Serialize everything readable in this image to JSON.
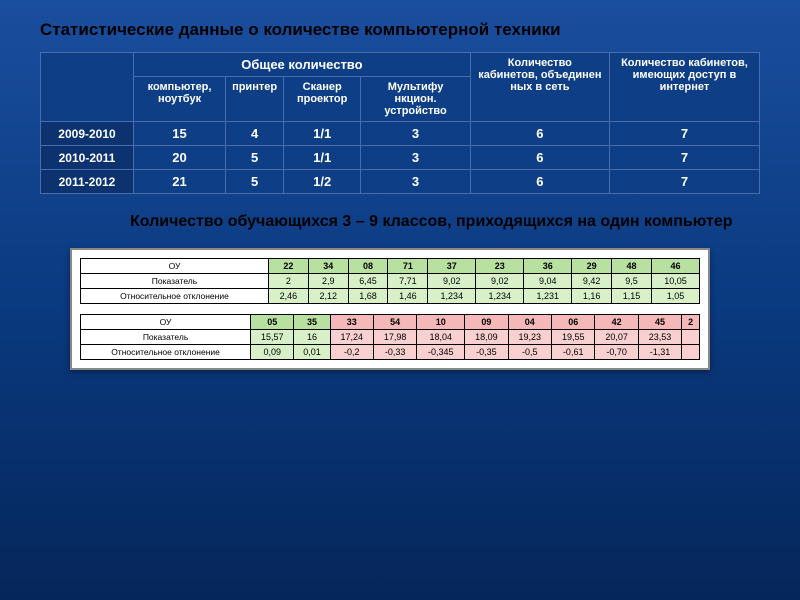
{
  "title": "Статистические данные о количестве компьютерной техники",
  "top_table": {
    "header_group": "Общее количество",
    "col_headers": [
      "компьютер, ноутбук",
      "принтер",
      "Сканер проектор",
      "Мультифу нкцион. устройство"
    ],
    "side_headers": [
      "Количество кабинетов, объединен ных в сеть",
      "Количество кабинетов, имеющих доступ в интернет"
    ],
    "rows": [
      {
        "year": "2009-2010",
        "vals": [
          "15",
          "4",
          "1/1",
          "3",
          "6",
          "7"
        ]
      },
      {
        "year": "2010-2011",
        "vals": [
          "20",
          "5",
          "1/1",
          "3",
          "6",
          "7"
        ]
      },
      {
        "year": "2011-2012",
        "vals": [
          "21",
          "5",
          "1/2",
          "3",
          "6",
          "7"
        ]
      }
    ]
  },
  "subtitle": "Количество обучающихся 3 – 9 классов, приходящихся на один компьютер",
  "bottom1": {
    "row_labels": [
      "ОУ",
      "Показатель",
      "Относительное отклонение"
    ],
    "headers": [
      "22",
      "34",
      "08",
      "71",
      "37",
      "23",
      "36",
      "29",
      "48",
      "46"
    ],
    "r1": [
      "2",
      "2,9",
      "6,45",
      "7,71",
      "9,02",
      "9,02",
      "9,04",
      "9,42",
      "9,5",
      "10,05"
    ],
    "r2": [
      "2,46",
      "2,12",
      "1,68",
      "1,46",
      "1,234",
      "1,234",
      "1,231",
      "1,16",
      "1,15",
      "1,05"
    ],
    "header_color": "#b8e0a0",
    "cell_color": "#d8f0c8"
  },
  "bottom2": {
    "row_labels": [
      "ОУ",
      "Показатель",
      "Относительное отклонение"
    ],
    "headers": [
      "05",
      "35",
      "33",
      "54",
      "10",
      "09",
      "04",
      "06",
      "42",
      "45"
    ],
    "r1": [
      "15,57",
      "16",
      "17,24",
      "17,98",
      "18,04",
      "18,09",
      "19,23",
      "19,55",
      "20,07",
      "23,53"
    ],
    "r2": [
      "0,09",
      "0,01",
      "-0,2",
      "-0,33",
      "-0,345",
      "-0,35",
      "-0,5",
      "-0,61",
      "-0,70",
      "-1,31"
    ],
    "green_cols": 2
  },
  "colors": {
    "bg_top": "#1a4e9e",
    "bg_bottom": "#05265a",
    "table_bg": "#0e3e86",
    "border": "#4a6ca8",
    "green_hdr": "#b8e0a0",
    "green_cell": "#d8f0c8",
    "pink_hdr": "#f4b8b8",
    "pink_cell": "#f8d0d0"
  }
}
